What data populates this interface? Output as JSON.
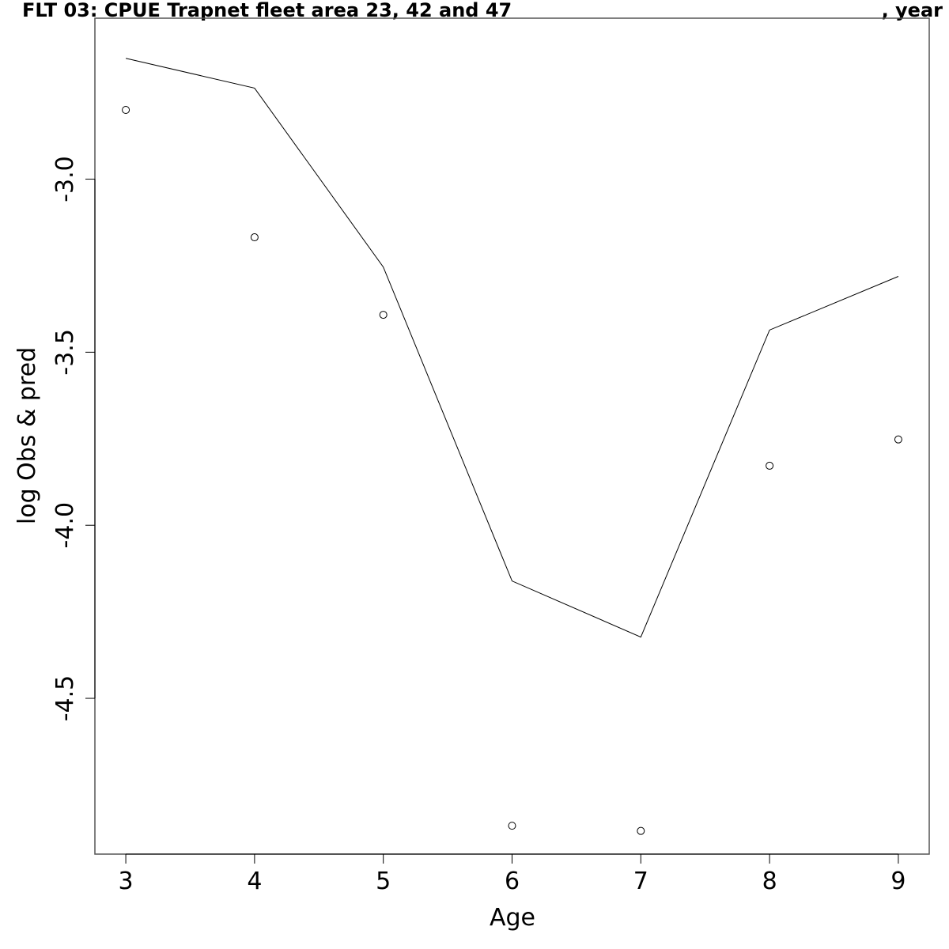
{
  "chart_data": {
    "type": "line",
    "title": "FLT 03: CPUE Trapnet fleet area 23, 42 and 47",
    "title_right": ", year",
    "xlabel": "Age",
    "ylabel": "log Obs & pred",
    "x": [
      3,
      4,
      5,
      6,
      7,
      8,
      9
    ],
    "xlim": [
      2.76,
      9.24
    ],
    "ylim": [
      -4.95,
      -2.535
    ],
    "x_ticks": [
      3,
      4,
      5,
      6,
      7,
      8,
      9
    ],
    "y_ticks": [
      -3.0,
      -3.5,
      -4.0,
      -4.5
    ],
    "x_tick_labels": [
      "3",
      "4",
      "5",
      "6",
      "7",
      "8",
      "9"
    ],
    "y_tick_labels": [
      "-3.0",
      "-3.5",
      "-4.0",
      "-4.5"
    ],
    "series": [
      {
        "role": "observed",
        "style": "points",
        "values": [
          -2.8,
          -3.168,
          -3.392,
          -4.868,
          -4.883,
          -3.828,
          -3.752
        ]
      },
      {
        "role": "predicted",
        "style": "line",
        "values": [
          -2.651,
          -2.737,
          -3.254,
          -4.161,
          -4.323,
          -3.436,
          -3.281
        ]
      }
    ],
    "grid": false,
    "legend": "none"
  }
}
